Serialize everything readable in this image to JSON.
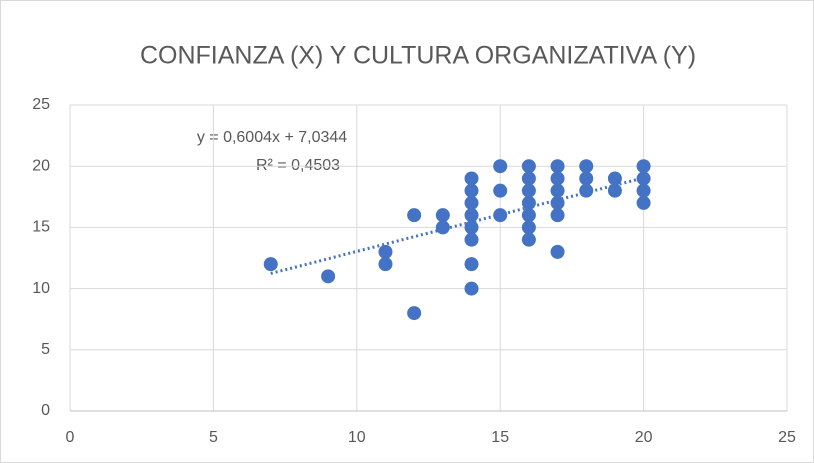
{
  "chart_data": {
    "type": "scatter",
    "title": "CONFIANZA (X) Y CULTURA ORGANIZATIVA (Y)",
    "x": [
      7,
      9,
      11,
      11,
      12,
      12,
      13,
      13,
      14,
      14,
      14,
      14,
      14,
      14,
      14,
      14,
      15,
      15,
      15,
      16,
      16,
      16,
      16,
      16,
      16,
      16,
      17,
      17,
      17,
      17,
      17,
      17,
      18,
      18,
      18,
      19,
      19,
      20,
      20,
      20,
      20
    ],
    "values": [
      12,
      11,
      13,
      12,
      16,
      8,
      16,
      15,
      19,
      18,
      17,
      16,
      15,
      14,
      12,
      10,
      20,
      18,
      16,
      20,
      19,
      18,
      17,
      16,
      15,
      14,
      20,
      19,
      18,
      17,
      16,
      13,
      20,
      19,
      18,
      19,
      18,
      20,
      19,
      18,
      17
    ],
    "color": "#4472c4",
    "xlim": [
      0,
      25
    ],
    "xticks": [
      0,
      5,
      10,
      15,
      20,
      25
    ],
    "ylim": [
      0,
      25
    ],
    "yticks": [
      0,
      5,
      10,
      15,
      20,
      25
    ],
    "grid": true,
    "trendline": {
      "slope": 0.6004,
      "intercept": 7.0344,
      "r2": 0.4503,
      "label": "y = 0,6004x + 7,0344",
      "r2_label": "R² = 0,4503"
    }
  }
}
